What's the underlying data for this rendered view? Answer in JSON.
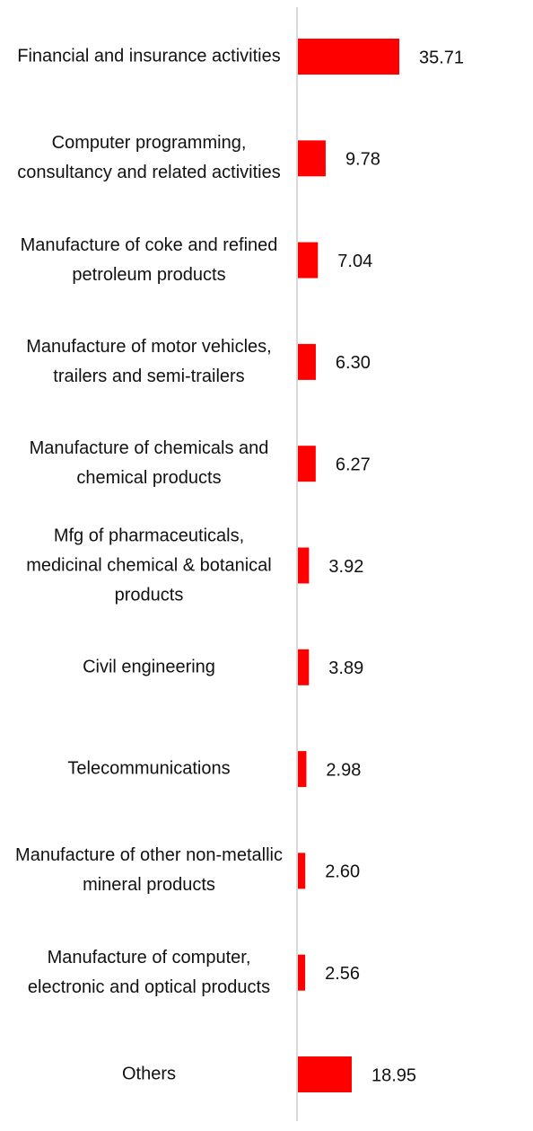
{
  "chart_data": {
    "type": "bar",
    "orientation": "horizontal",
    "color": "#ff0000",
    "categories": [
      "Financial and insurance activities",
      "Computer programming, consultancy and related activities",
      "Manufacture of coke and refined petroleum products",
      "Manufacture of motor vehicles, trailers and semi-trailers",
      "Manufacture of chemicals and chemical products",
      "Mfg of pharmaceuticals, medicinal chemical & botanical products",
      "Civil engineering",
      "Telecommunications",
      "Manufacture of other non-metallic mineral products",
      "Manufacture of computer, electronic and optical products",
      "Others"
    ],
    "values": [
      35.71,
      9.78,
      7.04,
      6.3,
      6.27,
      3.92,
      3.89,
      2.98,
      2.6,
      2.56,
      18.95
    ],
    "value_labels": [
      "35.71",
      "9.78",
      "7.04",
      "6.30",
      "6.27",
      "3.92",
      "3.89",
      "2.98",
      "2.60",
      "2.56",
      "18.95"
    ]
  }
}
